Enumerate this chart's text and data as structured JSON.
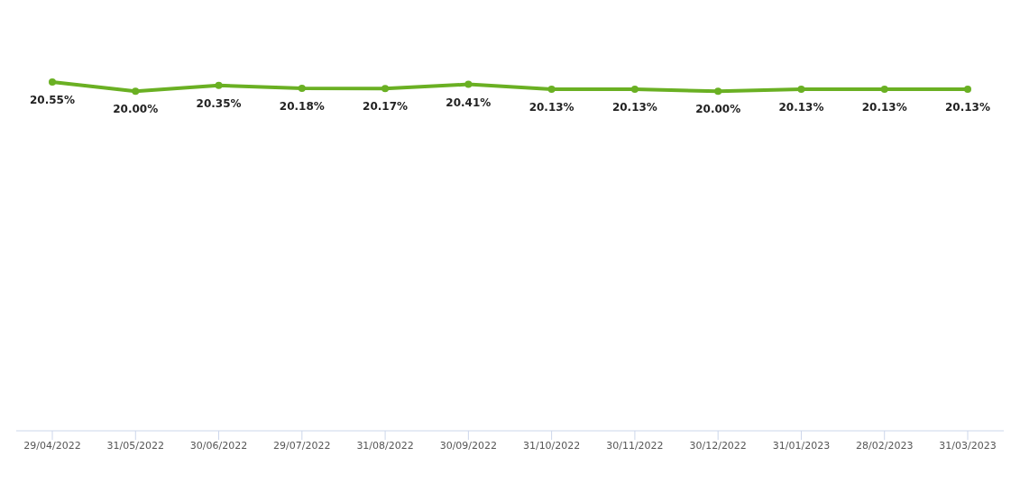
{
  "chart_data": {
    "type": "line",
    "categories": [
      "29/04/2022",
      "31/05/2022",
      "30/06/2022",
      "29/07/2022",
      "31/08/2022",
      "30/09/2022",
      "31/10/2022",
      "30/11/2022",
      "30/12/2022",
      "31/01/2023",
      "28/02/2023",
      "31/03/2023"
    ],
    "series": [
      {
        "color": "#6ab023",
        "values": [
          20.55,
          20.0,
          20.35,
          20.18,
          20.17,
          20.41,
          20.13,
          20.13,
          20.0,
          20.13,
          20.13,
          20.13
        ],
        "value_labels": [
          "20.55%",
          "20.00%",
          "20.35%",
          "20.18%",
          "20.17%",
          "20.41%",
          "20.13%",
          "20.13%",
          "20.00%",
          "20.13%",
          "20.13%",
          "20.13%"
        ]
      }
    ],
    "marker": "circle",
    "line_style": "solid"
  }
}
